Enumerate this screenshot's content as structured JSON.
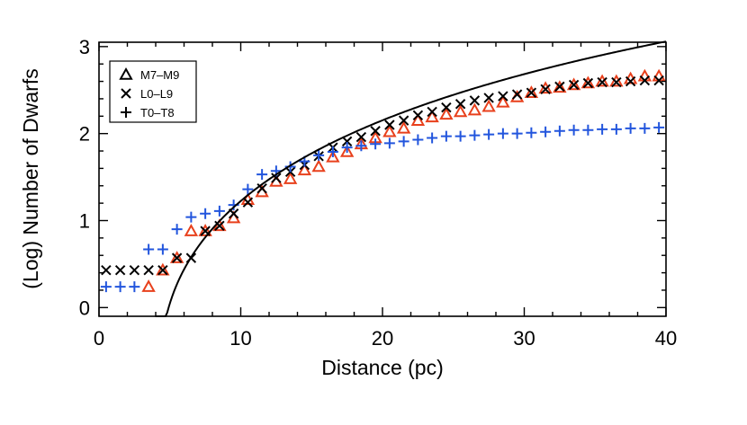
{
  "chart_data": {
    "type": "scatter",
    "title": "",
    "xlabel": "Distance (pc)",
    "ylabel": "(Log) Number of Dwarfs",
    "xlim": [
      0,
      40
    ],
    "ylim": [
      -0.1,
      3.05
    ],
    "xticks": [
      0,
      10,
      20,
      30,
      40
    ],
    "yticks": [
      0,
      1,
      2,
      3
    ],
    "grid": false,
    "legend_position": "top-left",
    "series": [
      {
        "name": "M7–M9",
        "marker": "triangle",
        "color": "#e8401c",
        "x": [
          3.5,
          4.5,
          5.5,
          6.5,
          7.5,
          8.5,
          9.5,
          10.5,
          11.5,
          12.5,
          13.5,
          14.5,
          15.5,
          16.5,
          17.5,
          18.5,
          19.5,
          20.5,
          21.5,
          22.5,
          23.5,
          24.5,
          25.5,
          26.5,
          27.5,
          28.5,
          29.5,
          30.5,
          31.5,
          32.5,
          33.5,
          34.5,
          35.5,
          36.5,
          37.5,
          38.5,
          39.5
        ],
        "y": [
          0.24,
          0.43,
          0.57,
          0.88,
          0.88,
          0.94,
          1.03,
          1.24,
          1.33,
          1.45,
          1.48,
          1.58,
          1.62,
          1.73,
          1.79,
          1.88,
          1.95,
          2.02,
          2.06,
          2.15,
          2.19,
          2.22,
          2.25,
          2.27,
          2.31,
          2.36,
          2.42,
          2.47,
          2.52,
          2.53,
          2.56,
          2.58,
          2.6,
          2.6,
          2.63,
          2.66,
          2.66
        ]
      },
      {
        "name": "L0–L9",
        "marker": "x",
        "color": "#000000",
        "x": [
          0.5,
          1.5,
          2.5,
          3.5,
          4.5,
          5.5,
          6.5,
          7.5,
          8.5,
          9.5,
          10.5,
          11.5,
          12.5,
          13.5,
          14.5,
          15.5,
          16.5,
          17.5,
          18.5,
          19.5,
          20.5,
          21.5,
          22.5,
          23.5,
          24.5,
          25.5,
          26.5,
          27.5,
          28.5,
          29.5,
          30.5,
          31.5,
          32.5,
          33.5,
          34.5,
          35.5,
          36.5,
          37.5,
          38.5,
          39.5
        ],
        "y": [
          0.43,
          0.43,
          0.43,
          0.43,
          0.43,
          0.57,
          0.57,
          0.88,
          0.94,
          1.08,
          1.21,
          1.37,
          1.49,
          1.56,
          1.64,
          1.74,
          1.84,
          1.91,
          1.96,
          2.03,
          2.1,
          2.15,
          2.21,
          2.25,
          2.3,
          2.34,
          2.38,
          2.41,
          2.43,
          2.45,
          2.47,
          2.51,
          2.54,
          2.56,
          2.58,
          2.59,
          2.59,
          2.6,
          2.61,
          2.61
        ]
      },
      {
        "name": "T0–T8",
        "marker": "plus",
        "color": "#2255dd",
        "x": [
          0.5,
          1.5,
          2.5,
          3.5,
          4.5,
          5.5,
          6.5,
          7.5,
          8.5,
          9.5,
          10.5,
          11.5,
          12.5,
          13.5,
          14.5,
          15.5,
          16.5,
          17.5,
          18.5,
          19.5,
          20.5,
          21.5,
          22.5,
          23.5,
          24.5,
          25.5,
          26.5,
          27.5,
          28.5,
          29.5,
          30.5,
          31.5,
          32.5,
          33.5,
          34.5,
          35.5,
          36.5,
          37.5,
          38.5,
          39.5
        ],
        "y": [
          0.24,
          0.24,
          0.24,
          0.67,
          0.67,
          0.9,
          1.04,
          1.08,
          1.11,
          1.18,
          1.36,
          1.53,
          1.57,
          1.62,
          1.68,
          1.75,
          1.79,
          1.84,
          1.86,
          1.88,
          1.89,
          1.91,
          1.93,
          1.95,
          1.97,
          1.97,
          1.98,
          1.99,
          2.0,
          2.0,
          2.01,
          2.02,
          2.03,
          2.04,
          2.04,
          2.05,
          2.05,
          2.06,
          2.06,
          2.07
        ]
      }
    ],
    "curve": {
      "color": "#000000",
      "form": "log10(a*(d^3 - d0^3))",
      "a": 0.0179,
      "d0": 3.97,
      "x_start": 3.97,
      "x_end": 40
    }
  }
}
